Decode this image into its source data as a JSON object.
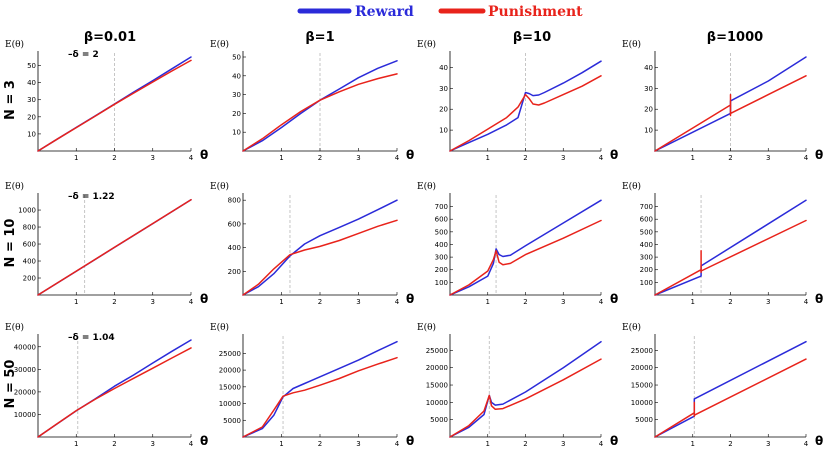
{
  "legend": {
    "reward_label": "Reward",
    "punishment_label": "Punishment",
    "reward_color": "#2b2bd9",
    "punishment_color": "#e8231b"
  },
  "chart_data": [
    {
      "type": "line",
      "row": 0,
      "col": 0,
      "title": "β=0.01",
      "row_label": "N = 3",
      "xlabel": "θ",
      "ylabel": "E(θ)",
      "delta_label": "–δ = 2",
      "delta": 2,
      "xlim": [
        0,
        4
      ],
      "ylim": [
        0,
        55
      ],
      "xticks": [
        1,
        2,
        3,
        4
      ],
      "yticks": [
        10,
        20,
        30,
        40,
        50
      ],
      "ytick_labels": [
        "10",
        "20",
        "30",
        "40",
        "50"
      ],
      "series": [
        {
          "name": "Reward",
          "x": [
            0,
            0.5,
            1,
            1.5,
            2,
            2.5,
            3,
            3.5,
            4
          ],
          "values": [
            0,
            6.9,
            13.8,
            20.6,
            27.5,
            34.4,
            41.2,
            48.1,
            55
          ]
        },
        {
          "name": "Punishment",
          "x": [
            0,
            0.5,
            1,
            1.5,
            2,
            2.5,
            3,
            3.5,
            4
          ],
          "values": [
            0,
            6.9,
            13.7,
            20.5,
            27.3,
            33.9,
            40.4,
            46.8,
            53
          ]
        }
      ]
    },
    {
      "type": "line",
      "row": 0,
      "col": 1,
      "title": "β=1",
      "xlabel": "θ",
      "ylabel": "E(θ)",
      "delta": 2,
      "xlim": [
        0,
        4
      ],
      "ylim": [
        0,
        50
      ],
      "xticks": [
        1,
        2,
        3,
        4
      ],
      "yticks": [
        10,
        20,
        30,
        40,
        50
      ],
      "ytick_labels": [
        "10",
        "20",
        "30",
        "40",
        "50"
      ],
      "series": [
        {
          "name": "Reward",
          "x": [
            0,
            0.5,
            1,
            1.5,
            2,
            2.5,
            3,
            3.5,
            4
          ],
          "values": [
            0,
            5.5,
            12.5,
            20,
            27,
            33,
            39,
            44,
            48
          ]
        },
        {
          "name": "Punishment",
          "x": [
            0,
            0.5,
            1,
            1.5,
            2,
            2.5,
            3,
            3.5,
            4
          ],
          "values": [
            0,
            6.5,
            14,
            21,
            27,
            31.5,
            35.5,
            38.5,
            41
          ]
        }
      ]
    },
    {
      "type": "line",
      "row": 0,
      "col": 2,
      "title": "β=10",
      "xlabel": "θ",
      "ylabel": "E(θ)",
      "delta": 2,
      "xlim": [
        0,
        4
      ],
      "ylim": [
        0,
        45
      ],
      "xticks": [
        1,
        2,
        3,
        4
      ],
      "yticks": [
        10,
        20,
        30,
        40
      ],
      "ytick_labels": [
        "10",
        "20",
        "30",
        "40"
      ],
      "series": [
        {
          "name": "Reward",
          "x": [
            0,
            0.5,
            1,
            1.5,
            1.8,
            2,
            2.1,
            2.2,
            2.35,
            2.5,
            3,
            3.5,
            4
          ],
          "values": [
            0,
            4,
            8,
            12.5,
            16,
            28,
            27.5,
            26.5,
            26.8,
            28,
            32.5,
            37.5,
            43
          ]
        },
        {
          "name": "Punishment",
          "x": [
            0,
            0.5,
            1,
            1.5,
            1.8,
            2,
            2.1,
            2.2,
            2.35,
            2.5,
            3,
            3.5,
            4
          ],
          "values": [
            0,
            5,
            10.5,
            16,
            21,
            27,
            25,
            22.5,
            22,
            23,
            27,
            31,
            36
          ]
        }
      ]
    },
    {
      "type": "line",
      "row": 0,
      "col": 3,
      "title": "β=1000",
      "xlabel": "θ",
      "ylabel": "E(θ)",
      "delta": 2,
      "xlim": [
        0,
        4
      ],
      "ylim": [
        0,
        45
      ],
      "xticks": [
        1,
        2,
        3,
        4
      ],
      "yticks": [
        10,
        20,
        30,
        40
      ],
      "ytick_labels": [
        "10",
        "20",
        "30",
        "40"
      ],
      "series": [
        {
          "name": "Reward",
          "x": [
            0,
            1,
            2,
            2,
            3,
            4
          ],
          "values": [
            0,
            9,
            18,
            24,
            33.5,
            45
          ]
        },
        {
          "name": "Punishment",
          "x": [
            0,
            1,
            2,
            2,
            2,
            2,
            3,
            4
          ],
          "values": [
            0,
            11,
            22,
            27,
            17,
            18,
            27,
            36
          ]
        }
      ]
    },
    {
      "type": "line",
      "row": 1,
      "col": 0,
      "title": "",
      "row_label": "N = 10",
      "xlabel": "θ",
      "ylabel": "E(θ)",
      "delta_label": "–δ = 1.22",
      "delta": 1.22,
      "xlim": [
        0,
        4
      ],
      "ylim": [
        0,
        1130
      ],
      "xticks": [
        1,
        2,
        3,
        4
      ],
      "yticks": [
        200,
        400,
        600,
        800,
        1000
      ],
      "ytick_labels": [
        "200",
        "400",
        "600",
        "800",
        "1000"
      ],
      "series": [
        {
          "name": "Reward",
          "x": [
            0,
            1,
            2,
            3,
            4
          ],
          "values": [
            0,
            280,
            560,
            840,
            1120
          ]
        },
        {
          "name": "Punishment",
          "x": [
            0,
            1,
            2,
            3,
            4
          ],
          "values": [
            0,
            281,
            562,
            842,
            1122
          ]
        }
      ]
    },
    {
      "type": "line",
      "row": 1,
      "col": 1,
      "title": "",
      "xlabel": "θ",
      "ylabel": "E(θ)",
      "delta": 1.22,
      "xlim": [
        0,
        4
      ],
      "ylim": [
        0,
        810
      ],
      "xticks": [
        1,
        2,
        3,
        4
      ],
      "yticks": [
        200,
        400,
        600,
        800
      ],
      "ytick_labels": [
        "200",
        "400",
        "600",
        "800"
      ],
      "series": [
        {
          "name": "Reward",
          "x": [
            0,
            0.4,
            0.8,
            1.22,
            1.6,
            2,
            2.5,
            3,
            3.5,
            4
          ],
          "values": [
            0,
            70,
            180,
            330,
            430,
            500,
            570,
            640,
            720,
            800
          ]
        },
        {
          "name": "Punishment",
          "x": [
            0,
            0.4,
            0.8,
            1.22,
            1.6,
            2,
            2.5,
            3,
            3.5,
            4
          ],
          "values": [
            0,
            90,
            220,
            340,
            380,
            410,
            460,
            520,
            580,
            630
          ]
        }
      ]
    },
    {
      "type": "line",
      "row": 1,
      "col": 2,
      "title": "",
      "xlabel": "θ",
      "ylabel": "E(θ)",
      "delta": 1.22,
      "xlim": [
        0,
        4
      ],
      "ylim": [
        0,
        760
      ],
      "xticks": [
        1,
        2,
        3,
        4
      ],
      "yticks": [
        100,
        200,
        300,
        400,
        500,
        600,
        700
      ],
      "ytick_labels": [
        "100",
        "200",
        "300",
        "400",
        "500",
        "600",
        "700"
      ],
      "series": [
        {
          "name": "Reward",
          "x": [
            0,
            0.5,
            1,
            1.15,
            1.22,
            1.3,
            1.4,
            1.6,
            2,
            3,
            4
          ],
          "values": [
            0,
            65,
            150,
            250,
            365,
            320,
            305,
            315,
            390,
            570,
            750
          ]
        },
        {
          "name": "Punishment",
          "x": [
            0,
            0.5,
            1,
            1.15,
            1.22,
            1.3,
            1.4,
            1.6,
            2,
            3,
            4
          ],
          "values": [
            0,
            80,
            190,
            280,
            350,
            260,
            240,
            250,
            320,
            450,
            590
          ]
        }
      ]
    },
    {
      "type": "line",
      "row": 1,
      "col": 3,
      "title": "",
      "xlabel": "θ",
      "ylabel": "E(θ)",
      "delta": 1.22,
      "xlim": [
        0,
        4
      ],
      "ylim": [
        0,
        760
      ],
      "xticks": [
        1,
        2,
        3,
        4
      ],
      "yticks": [
        100,
        200,
        300,
        400,
        500,
        600,
        700
      ],
      "ytick_labels": [
        "100",
        "200",
        "300",
        "400",
        "500",
        "600",
        "700"
      ],
      "series": [
        {
          "name": "Reward",
          "x": [
            0,
            1.22,
            1.22,
            4
          ],
          "values": [
            0,
            150,
            230,
            750
          ]
        },
        {
          "name": "Punishment",
          "x": [
            0,
            1.22,
            1.22,
            1.22,
            1.22,
            4
          ],
          "values": [
            0,
            200,
            350,
            180,
            190,
            590
          ]
        }
      ]
    },
    {
      "type": "line",
      "row": 2,
      "col": 0,
      "title": "",
      "row_label": "N = 50",
      "xlabel": "θ",
      "ylabel": "E(θ)",
      "delta_label": "–δ = 1.04",
      "delta": 1.04,
      "xlim": [
        0,
        4
      ],
      "ylim": [
        0,
        43000
      ],
      "xticks": [
        1,
        2,
        3,
        4
      ],
      "yticks": [
        10000,
        20000,
        30000,
        40000
      ],
      "ytick_labels": [
        "10000",
        "20000",
        "30000",
        "40000"
      ],
      "series": [
        {
          "name": "Reward",
          "x": [
            0,
            0.5,
            1,
            1.5,
            2,
            2.5,
            3,
            3.5,
            4
          ],
          "values": [
            0,
            5800,
            11600,
            17000,
            22500,
            27500,
            32800,
            38000,
            43000
          ]
        },
        {
          "name": "Punishment",
          "x": [
            0,
            0.5,
            1,
            1.5,
            2,
            2.5,
            3,
            3.5,
            4
          ],
          "values": [
            0,
            5900,
            11700,
            16800,
            21500,
            26000,
            30500,
            35000,
            39500
          ]
        }
      ]
    },
    {
      "type": "line",
      "row": 2,
      "col": 1,
      "title": "",
      "xlabel": "θ",
      "ylabel": "E(θ)",
      "delta": 1.04,
      "xlim": [
        0,
        4
      ],
      "ylim": [
        0,
        29000
      ],
      "xticks": [
        1,
        2,
        3,
        4
      ],
      "yticks": [
        5000,
        10000,
        15000,
        20000,
        25000
      ],
      "ytick_labels": [
        "5000",
        "10000",
        "15000",
        "20000",
        "25000"
      ],
      "series": [
        {
          "name": "Reward",
          "x": [
            0,
            0.5,
            0.8,
            1.04,
            1.3,
            1.6,
            2,
            2.5,
            3,
            3.5,
            4
          ],
          "values": [
            0,
            2500,
            6500,
            12000,
            14500,
            16000,
            18000,
            20500,
            23000,
            25800,
            28500
          ]
        },
        {
          "name": "Punishment",
          "x": [
            0,
            0.5,
            0.8,
            1.04,
            1.3,
            1.6,
            2,
            2.5,
            3,
            3.5,
            4
          ],
          "values": [
            0,
            3000,
            8000,
            12200,
            13200,
            14000,
            15500,
            17500,
            19800,
            21800,
            23700
          ]
        }
      ]
    },
    {
      "type": "line",
      "row": 2,
      "col": 2,
      "title": "",
      "xlabel": "θ",
      "ylabel": "E(θ)",
      "delta": 1.04,
      "xlim": [
        0,
        4
      ],
      "ylim": [
        0,
        28000
      ],
      "xticks": [
        1,
        2,
        3,
        4
      ],
      "yticks": [
        5000,
        10000,
        15000,
        20000,
        25000
      ],
      "ytick_labels": [
        "5000",
        "10000",
        "15000",
        "20000",
        "25000"
      ],
      "series": [
        {
          "name": "Reward",
          "x": [
            0,
            0.5,
            0.9,
            1.04,
            1.1,
            1.2,
            1.4,
            2,
            3,
            4
          ],
          "values": [
            0,
            2800,
            6500,
            12000,
            10000,
            9200,
            9500,
            13000,
            20000,
            27500
          ]
        },
        {
          "name": "Punishment",
          "x": [
            0,
            0.5,
            0.9,
            1.04,
            1.1,
            1.2,
            1.4,
            2,
            3,
            4
          ],
          "values": [
            0,
            3300,
            7500,
            12000,
            9000,
            8000,
            8200,
            11000,
            16500,
            22500
          ]
        }
      ]
    },
    {
      "type": "line",
      "row": 2,
      "col": 3,
      "title": "",
      "xlabel": "θ",
      "ylabel": "E(θ)",
      "delta": 1.04,
      "xlim": [
        0,
        4
      ],
      "ylim": [
        0,
        28000
      ],
      "xticks": [
        1,
        2,
        3,
        4
      ],
      "yticks": [
        5000,
        10000,
        15000,
        20000,
        25000
      ],
      "ytick_labels": [
        "5000",
        "10000",
        "15000",
        "20000",
        "25000"
      ],
      "series": [
        {
          "name": "Reward",
          "x": [
            0,
            1.04,
            1.04,
            4
          ],
          "values": [
            0,
            6000,
            11000,
            27500
          ]
        },
        {
          "name": "Punishment",
          "x": [
            0,
            1.04,
            1.04,
            1.04,
            1.04,
            4
          ],
          "values": [
            0,
            7000,
            10000,
            6000,
            6300,
            22500
          ]
        }
      ]
    }
  ]
}
